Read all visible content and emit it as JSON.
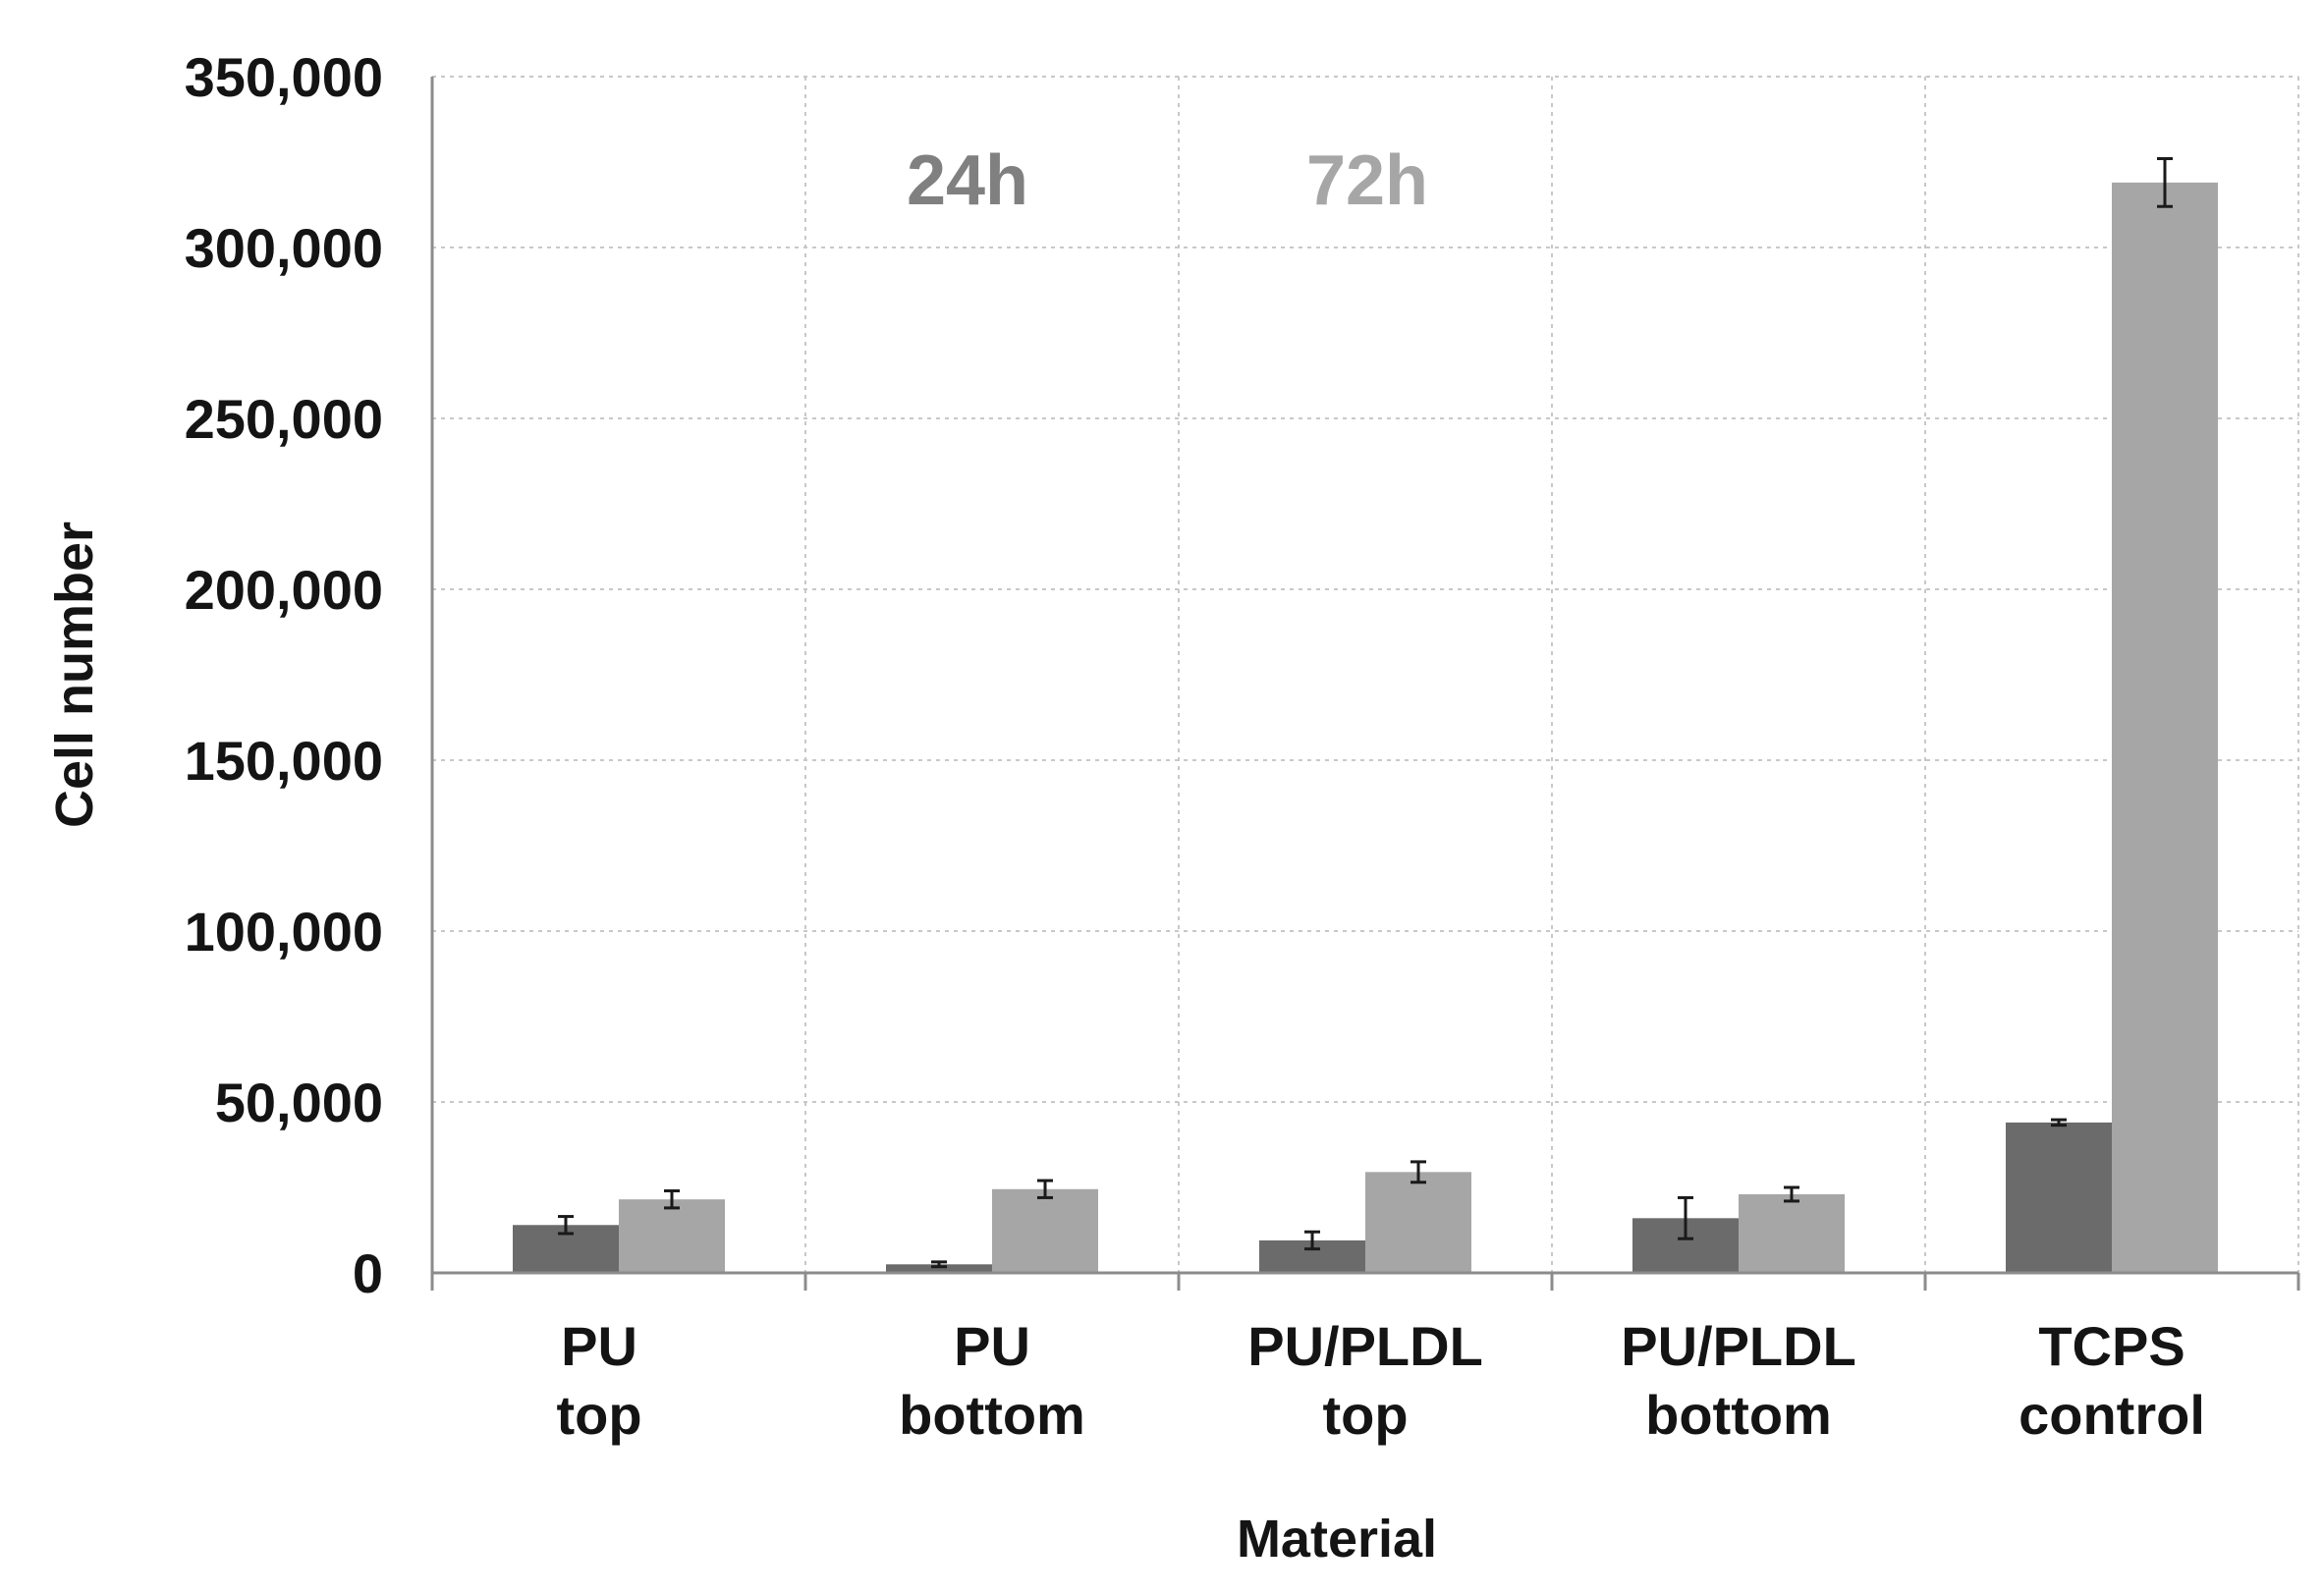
{
  "chart_data": {
    "type": "bar",
    "title": "",
    "xlabel": "Material",
    "ylabel": "Cell number",
    "ylim": [
      0,
      350000
    ],
    "yticks": [
      0,
      50000,
      100000,
      150000,
      200000,
      250000,
      300000,
      350000
    ],
    "ytick_labels": [
      "0",
      "50,000",
      "100,000",
      "150,000",
      "200,000",
      "250,000",
      "300,000",
      "350,000"
    ],
    "categories": [
      [
        "PU",
        "top"
      ],
      [
        "PU",
        "bottom"
      ],
      [
        "PU/PLDL",
        "top"
      ],
      [
        "PU/PLDL",
        "bottom"
      ],
      [
        "TCPS",
        "control"
      ]
    ],
    "series": [
      {
        "name": "24h",
        "color": "#6b6b6b",
        "values": [
          14000,
          2500,
          9500,
          16000,
          44000
        ],
        "errors": [
          2500,
          700,
          2500,
          6000,
          800
        ]
      },
      {
        "name": "72h",
        "color": "#a6a6a6",
        "values": [
          21500,
          24500,
          29500,
          23000,
          319000
        ],
        "errors": [
          2500,
          2500,
          3000,
          2000,
          7000
        ]
      }
    ],
    "grid": true,
    "legend_position": "top-center",
    "legend_colors": [
      "#808080",
      "#a6a6a6"
    ]
  }
}
